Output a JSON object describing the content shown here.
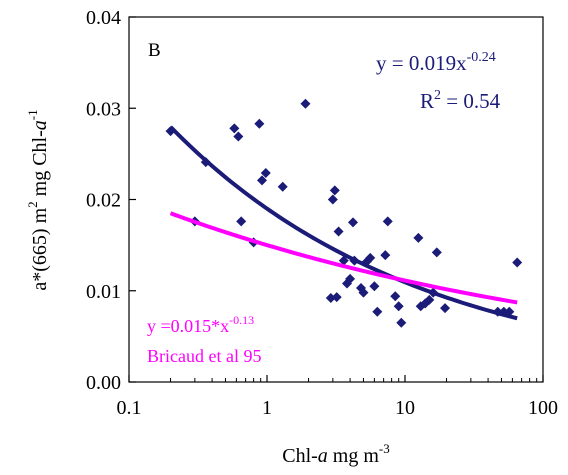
{
  "chart_data": {
    "type": "scatter",
    "panel_label": "B",
    "x_scale": "log",
    "xlim": [
      0.1,
      100
    ],
    "ylim": [
      0,
      0.04
    ],
    "x_ticks": [
      0.1,
      1,
      10,
      100
    ],
    "x_tick_labels": [
      "0.1",
      "1",
      "10",
      "100"
    ],
    "y_ticks": [
      0,
      0.01,
      0.02,
      0.03,
      0.04
    ],
    "y_tick_labels": [
      "0.00",
      "0.01",
      "0.02",
      "0.03",
      "0.04"
    ],
    "xlabel": {
      "pre": "Chl-",
      "italic": "a",
      "post": "  mg m",
      "sup": "-3"
    },
    "ylabel": {
      "p1": "a*(665) m",
      "s1": "2",
      "p2": " mg Chl-",
      "italic": "a",
      "s2": "-1"
    },
    "points": [
      [
        0.2,
        0.0275
      ],
      [
        0.3,
        0.0176
      ],
      [
        0.36,
        0.0241
      ],
      [
        0.58,
        0.0278
      ],
      [
        0.62,
        0.0269
      ],
      [
        0.65,
        0.0176
      ],
      [
        0.8,
        0.0153
      ],
      [
        0.88,
        0.0283
      ],
      [
        0.92,
        0.0221
      ],
      [
        0.98,
        0.0229
      ],
      [
        1.3,
        0.0214
      ],
      [
        1.9,
        0.0305
      ],
      [
        2.9,
        0.0092
      ],
      [
        3.0,
        0.02
      ],
      [
        3.1,
        0.021
      ],
      [
        3.2,
        0.0093
      ],
      [
        3.3,
        0.0165
      ],
      [
        3.6,
        0.0133
      ],
      [
        3.8,
        0.0108
      ],
      [
        4.0,
        0.0113
      ],
      [
        4.2,
        0.0175
      ],
      [
        4.3,
        0.0133
      ],
      [
        4.8,
        0.0103
      ],
      [
        5.0,
        0.0098
      ],
      [
        5.3,
        0.0132
      ],
      [
        5.6,
        0.0136
      ],
      [
        6.0,
        0.0105
      ],
      [
        6.3,
        0.0077
      ],
      [
        7.2,
        0.0139
      ],
      [
        7.5,
        0.0176
      ],
      [
        8.5,
        0.0094
      ],
      [
        9.0,
        0.0083
      ],
      [
        9.4,
        0.0065
      ],
      [
        12.5,
        0.0158
      ],
      [
        13.0,
        0.0083
      ],
      [
        14.0,
        0.0086
      ],
      [
        15.0,
        0.009
      ],
      [
        16.0,
        0.0098
      ],
      [
        17.0,
        0.0142
      ],
      [
        19.5,
        0.0081
      ],
      [
        47.0,
        0.0077
      ],
      [
        52.0,
        0.0077
      ],
      [
        57.0,
        0.0077
      ],
      [
        65.0,
        0.0131
      ]
    ],
    "fits": [
      {
        "coef": 0.019,
        "exponent": -0.24,
        "color": "#1b1b78",
        "x_range": [
          0.2,
          65
        ],
        "eq_prefix": "y = 0.019x",
        "eq_sup": "-0.24",
        "r2_prefix": "R",
        "r2_sup": "2",
        "r2_suffix": " = 0.54"
      },
      {
        "coef": 0.015,
        "exponent": -0.13,
        "color": "#ff00ff",
        "x_range": [
          0.2,
          65
        ],
        "eq_prefix": "y =0.015*x",
        "eq_sup": "-0.13",
        "source": "Bricaud et al 95"
      }
    ],
    "point_color": "#1b1b78",
    "grid": false,
    "legend": "none"
  }
}
